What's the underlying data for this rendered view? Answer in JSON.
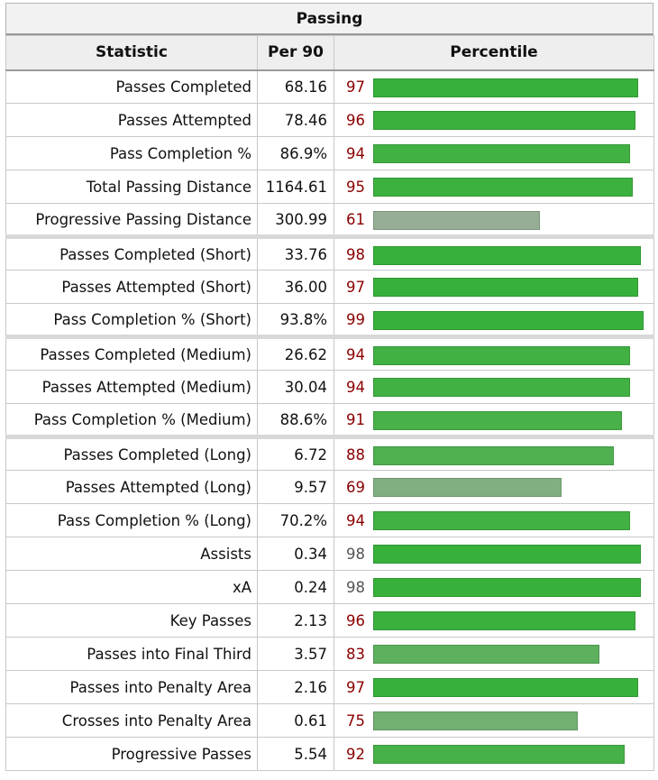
{
  "table": {
    "caption": "Passing",
    "headers": {
      "statistic": "Statistic",
      "per90": "Per 90",
      "percentile": "Percentile"
    },
    "rows": [
      {
        "statistic": "Passes Completed",
        "per90": "68.16",
        "percentile": 97,
        "num_color": "red"
      },
      {
        "statistic": "Passes Attempted",
        "per90": "78.46",
        "percentile": 96,
        "num_color": "red"
      },
      {
        "statistic": "Pass Completion %",
        "per90": "86.9%",
        "percentile": 94,
        "num_color": "red"
      },
      {
        "statistic": "Total Passing Distance",
        "per90": "1164.61",
        "percentile": 95,
        "num_color": "red"
      },
      {
        "statistic": "Progressive Passing Distance",
        "per90": "300.99",
        "percentile": 61,
        "num_color": "red"
      },
      {
        "statistic": "Passes Completed (Short)",
        "per90": "33.76",
        "percentile": 98,
        "num_color": "red",
        "group_start": true
      },
      {
        "statistic": "Passes Attempted (Short)",
        "per90": "36.00",
        "percentile": 97,
        "num_color": "red"
      },
      {
        "statistic": "Pass Completion % (Short)",
        "per90": "93.8%",
        "percentile": 99,
        "num_color": "red"
      },
      {
        "statistic": "Passes Completed (Medium)",
        "per90": "26.62",
        "percentile": 94,
        "num_color": "red",
        "group_start": true
      },
      {
        "statistic": "Passes Attempted (Medium)",
        "per90": "30.04",
        "percentile": 94,
        "num_color": "red"
      },
      {
        "statistic": "Pass Completion % (Medium)",
        "per90": "88.6%",
        "percentile": 91,
        "num_color": "red"
      },
      {
        "statistic": "Passes Completed (Long)",
        "per90": "6.72",
        "percentile": 88,
        "num_color": "red",
        "group_start": true
      },
      {
        "statistic": "Passes Attempted (Long)",
        "per90": "9.57",
        "percentile": 69,
        "num_color": "red"
      },
      {
        "statistic": "Pass Completion % (Long)",
        "per90": "70.2%",
        "percentile": 94,
        "num_color": "red"
      },
      {
        "statistic": "Assists",
        "per90": "0.34",
        "percentile": 98,
        "num_color": "gray"
      },
      {
        "statistic": "xA",
        "per90": "0.24",
        "percentile": 98,
        "num_color": "gray"
      },
      {
        "statistic": "Key Passes",
        "per90": "2.13",
        "percentile": 96,
        "num_color": "red"
      },
      {
        "statistic": "Passes into Final Third",
        "per90": "3.57",
        "percentile": 83,
        "num_color": "red"
      },
      {
        "statistic": "Passes into Penalty Area",
        "per90": "2.16",
        "percentile": 97,
        "num_color": "red"
      },
      {
        "statistic": "Crosses into Penalty Area",
        "per90": "0.61",
        "percentile": 75,
        "num_color": "red"
      },
      {
        "statistic": "Progressive Passes",
        "per90": "5.54",
        "percentile": 92,
        "num_color": "red"
      }
    ]
  },
  "chart_data": {
    "type": "bar",
    "title": "Passing",
    "xlabel": "Percentile",
    "xlim": [
      0,
      100
    ],
    "categories": [
      "Passes Completed",
      "Passes Attempted",
      "Pass Completion %",
      "Total Passing Distance",
      "Progressive Passing Distance",
      "Passes Completed (Short)",
      "Passes Attempted (Short)",
      "Pass Completion % (Short)",
      "Passes Completed (Medium)",
      "Passes Attempted (Medium)",
      "Pass Completion % (Medium)",
      "Passes Completed (Long)",
      "Passes Attempted (Long)",
      "Pass Completion % (Long)",
      "Assists",
      "xA",
      "Key Passes",
      "Passes into Final Third",
      "Passes into Penalty Area",
      "Crosses into Penalty Area",
      "Progressive Passes"
    ],
    "values": [
      97,
      96,
      94,
      95,
      61,
      98,
      97,
      99,
      94,
      94,
      91,
      88,
      69,
      94,
      98,
      98,
      96,
      83,
      97,
      75,
      92
    ],
    "orientation": "horizontal",
    "grid": false
  },
  "colors": {
    "bar_high": "#38b13a",
    "bar_low": "#98ae98",
    "num_red": "#8b0000",
    "num_gray": "#555555"
  }
}
